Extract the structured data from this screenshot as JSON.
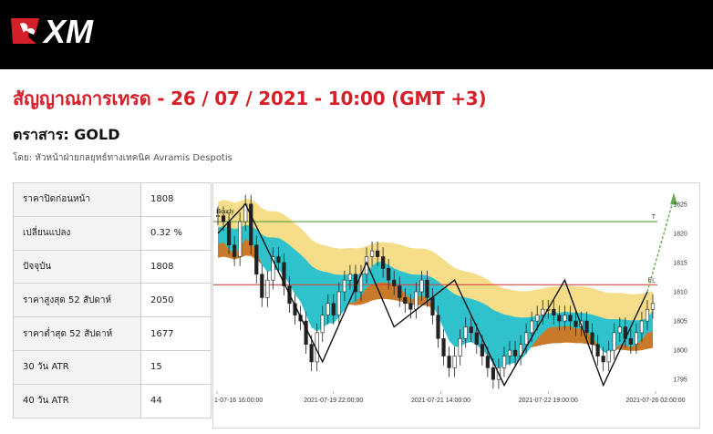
{
  "brand": {
    "name": "XM",
    "bar_color": "#000000",
    "accent": "#d5202a"
  },
  "report": {
    "title": "สัญญาณการเทรด - 26 / 07 / 2021 - 10:00 (GMT +3)",
    "instrument": "ตราสาร: GOLD",
    "author": "โดย: หัวหน้าฝ่ายกลยุทธ์ทางเทคนิค Avramis Despotis"
  },
  "stats": [
    {
      "label": "ราคาปิดก่อนหน้า",
      "value": "1808"
    },
    {
      "label": "เปลี่ยนแปลง",
      "value": "0.32 %"
    },
    {
      "label": "ปัจจุบัน",
      "value": "1808"
    },
    {
      "label": "ราคาสูงสุด 52 สัปดาห์",
      "value": "2050"
    },
    {
      "label": "ราคาต่ำสุด 52 สัปดาห์",
      "value": "1677"
    },
    {
      "label": "30 วัน ATR",
      "value": "15"
    },
    {
      "label": "40 วัน ATR",
      "value": "44"
    }
  ],
  "chart_data": {
    "type": "line",
    "title": "Hourly",
    "x_tick_labels": [
      "1-07-16 16:00:00",
      "2021-07-19 22:00:00",
      "2021-07-21 14:00:00",
      "2021-07-22 19:00:00",
      "2021-07-26 02:00:00"
    ],
    "ylim": [
      1793,
      1827
    ],
    "y_ticks": [
      1795,
      1800,
      1805,
      1810,
      1815,
      1820,
      1825
    ],
    "x_count": 80,
    "series": [
      {
        "role": "candles",
        "values": [
          1823,
          1822,
          1818,
          1816,
          1822,
          1825,
          1818,
          1813,
          1809,
          1812,
          1816,
          1815,
          1811,
          1808,
          1806,
          1805,
          1801,
          1798,
          1803,
          1806,
          1808,
          1806,
          1810,
          1812,
          1813,
          1810,
          1813,
          1816,
          1817,
          1816,
          1814,
          1812,
          1811,
          1809,
          1808,
          1807,
          1810,
          1812,
          1809,
          1806,
          1802,
          1799,
          1797,
          1799,
          1802,
          1804,
          1803,
          1801,
          1799,
          1797,
          1795,
          1797,
          1799,
          1800,
          1799,
          1801,
          1803,
          1805,
          1806,
          1807,
          1807,
          1806,
          1805,
          1806,
          1805,
          1804,
          1805,
          1803,
          1801,
          1799,
          1798,
          1800,
          1803,
          1804,
          1802,
          1801,
          1803,
          1805,
          1807,
          1808
        ],
        "color": "#222222"
      },
      {
        "role": "zigzag",
        "x": [
          0,
          5,
          19,
          27,
          32,
          43,
          52,
          63,
          70,
          78
        ],
        "values": [
          1820,
          1825,
          1798,
          1815,
          1804,
          1812,
          1794,
          1812,
          1794,
          1810
        ],
        "color": "#111111"
      },
      {
        "role": "projection",
        "x": [
          78,
          80
        ],
        "values": [
          1810,
          1826
        ],
        "color": "#6aa84f"
      },
      {
        "role": "ema-fast",
        "values": [
          1819.3,
          1819.7,
          1818.5,
          1817.6,
          1818.8,
          1820.2,
          1819.8,
          1818.1,
          1815.8,
          1814.6,
          1814.9,
          1815.0,
          1814.0,
          1812.4,
          1810.8,
          1809.5,
          1807.3,
          1805.1,
          1804.5,
          1804.9,
          1805.8,
          1805.8,
          1806.9,
          1808.1,
          1809.3,
          1809.5,
          1810.4,
          1811.9,
          1813.2,
          1813.9,
          1813.9,
          1813.4,
          1812.8,
          1811.9,
          1810.9,
          1810.0,
          1810.0,
          1810.6,
          1810.1,
          1808.9,
          1807.0,
          1804.9,
          1802.8,
          1801.8,
          1801.8,
          1802.4,
          1802.6,
          1802.1,
          1801.3,
          1800.2,
          1798.8,
          1798.2,
          1798.4,
          1798.9,
          1799.0,
          1799.6,
          1800.6,
          1801.9,
          1803.1,
          1804.2,
          1805.0,
          1805.3,
          1805.2,
          1805.4,
          1805.3,
          1804.9,
          1804.9,
          1804.3,
          1803.4,
          1802.1,
          1800.9,
          1800.6,
          1801.3,
          1802.1,
          1802.1,
          1801.7,
          1802.1,
          1803.0,
          1804.3,
          1805.6
        ],
        "color": "#2f7fc0"
      },
      {
        "role": "ema-slow",
        "values": [
          1819.8,
          1820.0,
          1819.8,
          1819.5,
          1819.8,
          1820.2,
          1820.1,
          1819.5,
          1818.6,
          1818.1,
          1818.1,
          1818.0,
          1817.5,
          1816.8,
          1816.0,
          1815.2,
          1814.3,
          1813.2,
          1812.6,
          1812.3,
          1812.1,
          1811.8,
          1811.7,
          1811.7,
          1811.8,
          1811.7,
          1811.8,
          1812.1,
          1812.5,
          1812.7,
          1812.8,
          1812.7,
          1812.6,
          1812.4,
          1812.1,
          1811.8,
          1811.7,
          1811.7,
          1811.6,
          1811.2,
          1810.6,
          1809.8,
          1809.1,
          1808.4,
          1808.0,
          1807.8,
          1807.6,
          1807.3,
          1806.9,
          1806.4,
          1805.7,
          1805.3,
          1804.9,
          1804.7,
          1804.5,
          1804.4,
          1804.4,
          1804.5,
          1804.7,
          1804.9,
          1805.1,
          1805.2,
          1805.2,
          1805.3,
          1805.3,
          1805.2,
          1805.2,
          1805.1,
          1804.9,
          1804.6,
          1804.3,
          1804.1,
          1804.1,
          1804.1,
          1804.0,
          1803.9,
          1803.9,
          1804.0,
          1804.2,
          1804.4
        ],
        "color": "#c8792a"
      },
      {
        "role": "upper-band",
        "values": [
          1825.3,
          1825.7,
          1825.5,
          1825.2,
          1825.5,
          1825.9,
          1825.8,
          1825.2,
          1824.3,
          1823.8,
          1823.8,
          1823.7,
          1823.2,
          1822.5,
          1821.7,
          1820.9,
          1820.0,
          1818.9,
          1818.3,
          1818.0,
          1817.8,
          1817.5,
          1817.4,
          1817.4,
          1817.5,
          1817.4,
          1817.5,
          1817.8,
          1818.2,
          1818.4,
          1818.5,
          1818.4,
          1818.3,
          1818.1,
          1817.8,
          1817.5,
          1817.4,
          1817.4,
          1817.3,
          1816.9,
          1816.3,
          1815.5,
          1814.8,
          1814.1,
          1813.7,
          1813.5,
          1813.3,
          1813.0,
          1812.6,
          1812.1,
          1811.4,
          1811.0,
          1810.6,
          1810.4,
          1810.2,
          1810.1,
          1810.1,
          1810.2,
          1810.4,
          1810.6,
          1810.8,
          1810.9,
          1810.9,
          1811.0,
          1811.0,
          1810.9,
          1810.9,
          1810.8,
          1810.6,
          1810.3,
          1810.0,
          1809.8,
          1809.8,
          1809.8,
          1809.7,
          1809.6,
          1809.6,
          1809.7,
          1809.9,
          1810.1
        ],
        "color": "#f5dd8a"
      }
    ],
    "hlines": [
      {
        "label": "T",
        "value": 1822.0,
        "color": "#5e9e3a"
      },
      {
        "label": "EL",
        "value": 1811.2,
        "color": "#d24b3f"
      }
    ],
    "grid": false,
    "legend": false
  }
}
